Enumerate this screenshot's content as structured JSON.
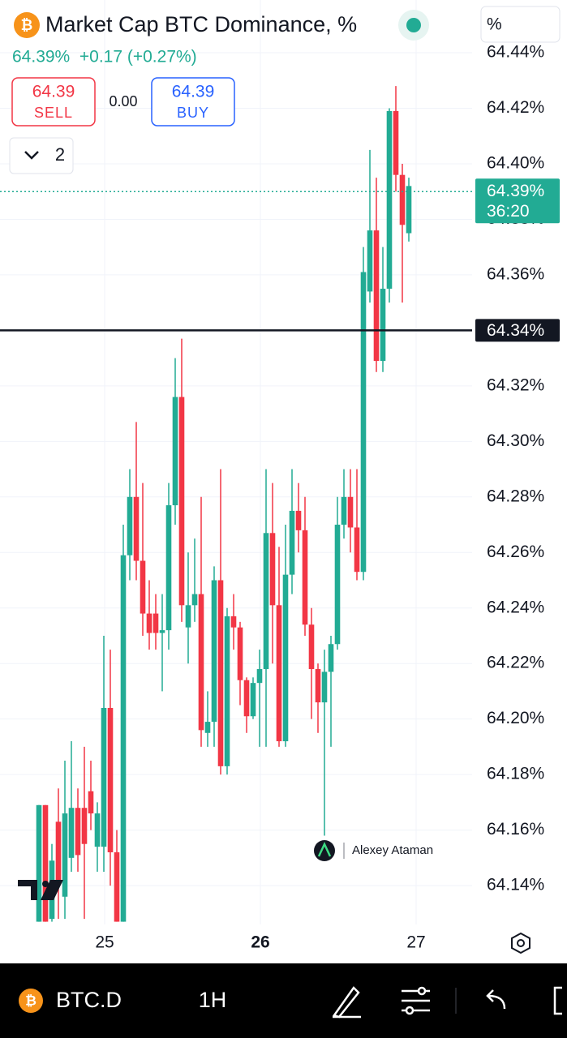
{
  "header": {
    "title": "Market Cap BTC Dominance, %",
    "price_change": "64.39%  +0.17 (+0.27%)",
    "sell_price": "64.39",
    "sell_label": "SELL",
    "spread": "0.00",
    "buy_price": "64.39",
    "buy_label": "BUY",
    "indicators_count": "2",
    "scale_button": "%"
  },
  "chart_data": {
    "type": "candlestick",
    "up_color": "#22ab94",
    "down_color": "#f23645",
    "ylim": [
      64.126,
      64.459
    ],
    "yticks": [
      {
        "value": 64.44,
        "label": "64.44%"
      },
      {
        "value": 64.42,
        "label": "64.42%"
      },
      {
        "value": 64.4,
        "label": "64.40%"
      },
      {
        "value": 64.38,
        "label": "64.38%"
      },
      {
        "value": 64.36,
        "label": "64.36%"
      },
      {
        "value": 64.34,
        "label": "64.34%"
      },
      {
        "value": 64.32,
        "label": "64.32%"
      },
      {
        "value": 64.3,
        "label": "64.30%"
      },
      {
        "value": 64.28,
        "label": "64.28%"
      },
      {
        "value": 64.26,
        "label": "64.26%"
      },
      {
        "value": 64.24,
        "label": "64.24%"
      },
      {
        "value": 64.22,
        "label": "64.22%"
      },
      {
        "value": 64.2,
        "label": "64.20%"
      },
      {
        "value": 64.18,
        "label": "64.18%"
      },
      {
        "value": 64.16,
        "label": "64.16%"
      },
      {
        "value": 64.14,
        "label": "64.14%"
      }
    ],
    "xlim": [
      -6,
      66.75
    ],
    "xticks": [
      {
        "value": 10.125,
        "label": "25"
      },
      {
        "value": 34.125,
        "label": "26"
      },
      {
        "value": 58.125,
        "label": "27"
      }
    ],
    "open": [
      64.127,
      64.169,
      64.128,
      64.163,
      64.136,
      64.15,
      64.168,
      64.168,
      64.174,
      64.154,
      64.154,
      64.204,
      64.152,
      64.127,
      64.259,
      64.28,
      64.257,
      64.238,
      64.238,
      64.231,
      64.232,
      64.277,
      64.316,
      64.233,
      64.241,
      64.245,
      64.195,
      64.199,
      64.25,
      64.183,
      64.237,
      64.233,
      64.214,
      64.201,
      64.213,
      64.218,
      64.267,
      64.241,
      64.192,
      64.252,
      64.275,
      64.268,
      64.234,
      64.218,
      64.206,
      64.217,
      64.227,
      64.27,
      64.28,
      64.269,
      64.253,
      64.354,
      64.376,
      64.329,
      64.355,
      64.419,
      64.396,
      64.375
    ],
    "high": [
      64.169,
      64.169,
      64.155,
      64.175,
      64.185,
      64.192,
      64.175,
      64.19,
      64.185,
      64.17,
      64.23,
      64.225,
      64.16,
      64.27,
      64.29,
      64.307,
      64.285,
      64.25,
      64.245,
      64.245,
      64.285,
      64.33,
      64.337,
      64.26,
      64.265,
      64.28,
      64.21,
      64.255,
      64.29,
      64.24,
      64.245,
      64.235,
      64.215,
      64.215,
      64.225,
      64.29,
      64.285,
      64.262,
      64.27,
      64.29,
      64.285,
      64.28,
      64.24,
      64.22,
      64.225,
      64.23,
      64.28,
      64.29,
      64.29,
      64.29,
      64.37,
      64.405,
      64.395,
      64.37,
      64.42,
      64.428,
      64.4,
      64.395
    ],
    "low": [
      64.127,
      64.127,
      64.127,
      64.128,
      64.128,
      64.145,
      64.145,
      64.128,
      64.16,
      64.145,
      64.145,
      64.14,
      64.127,
      64.127,
      64.25,
      64.25,
      64.23,
      64.225,
      64.225,
      64.21,
      64.225,
      64.27,
      64.235,
      64.22,
      64.235,
      64.19,
      64.19,
      64.19,
      64.18,
      64.18,
      64.225,
      64.205,
      64.195,
      64.2,
      64.19,
      64.19,
      64.22,
      64.19,
      64.19,
      64.245,
      64.26,
      64.23,
      64.2,
      64.195,
      64.158,
      64.19,
      64.225,
      64.265,
      64.26,
      64.25,
      64.25,
      64.35,
      64.325,
      64.325,
      64.35,
      64.39,
      64.35,
      64.372
    ],
    "close": [
      64.169,
      64.127,
      64.149,
      64.142,
      64.166,
      64.168,
      64.151,
      64.155,
      64.166,
      64.166,
      64.204,
      64.152,
      64.127,
      64.259,
      64.28,
      64.257,
      64.238,
      64.231,
      64.231,
      64.232,
      64.277,
      64.316,
      64.241,
      64.241,
      64.245,
      64.196,
      64.199,
      64.25,
      64.183,
      64.237,
      64.233,
      64.214,
      64.201,
      64.213,
      64.218,
      64.267,
      64.241,
      64.192,
      64.252,
      64.275,
      64.268,
      64.234,
      64.218,
      64.206,
      64.217,
      64.227,
      64.27,
      64.28,
      64.269,
      64.253,
      64.361,
      64.376,
      64.329,
      64.355,
      64.419,
      64.396,
      64.378,
      64.392
    ],
    "current_price": {
      "value": 64.39,
      "label": "64.39%"
    },
    "countdown": "36:20",
    "horizontal_line": {
      "value": 64.34,
      "label": "64.34%"
    },
    "watermark": "Alexey Ataman"
  },
  "toolbar": {
    "symbol": "BTC.D",
    "interval": "1H"
  }
}
